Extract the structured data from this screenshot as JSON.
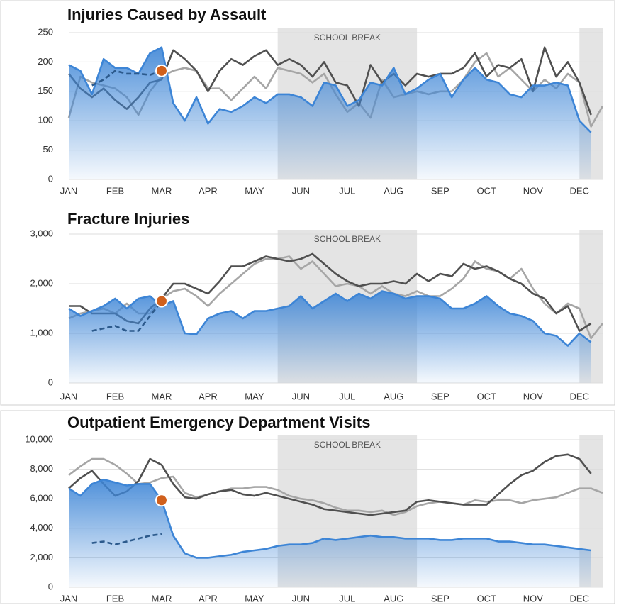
{
  "chart_data": [
    {
      "type": "line",
      "title": "Injuries Caused by Assault",
      "categories": [
        "JAN",
        null,
        null,
        null,
        "FEB",
        null,
        null,
        null,
        "MAR",
        null,
        null,
        null,
        "APR",
        null,
        null,
        null,
        "MAY",
        null,
        null,
        null,
        "JUN",
        null,
        null,
        null,
        "JUL",
        null,
        null,
        null,
        "AUG",
        null,
        null,
        null,
        "SEP",
        null,
        null,
        null,
        "OCT",
        null,
        null,
        null,
        "NOV",
        null,
        null,
        null,
        "DEC",
        null,
        null
      ],
      "ylim": [
        0,
        250
      ],
      "yticks": [
        0,
        50,
        100,
        150,
        200,
        250
      ],
      "grid": true,
      "bands": [
        {
          "label": "SCHOOL BREAK",
          "from": 18,
          "to": 30
        },
        {
          "from": 44,
          "to": 46
        }
      ],
      "series": [
        {
          "color": "#a6a6a6",
          "values": [
            105,
            175,
            165,
            160,
            155,
            140,
            110,
            150,
            175,
            185,
            190,
            185,
            155,
            155,
            135,
            155,
            175,
            155,
            190,
            185,
            180,
            165,
            180,
            145,
            115,
            130,
            105,
            170,
            140,
            145,
            150,
            145,
            150,
            150,
            170,
            200,
            215,
            175,
            190,
            170,
            150,
            170,
            155,
            180,
            165,
            90,
            125
          ]
        },
        {
          "color": "#505050",
          "values": [
            180,
            155,
            140,
            155,
            135,
            120,
            140,
            165,
            170,
            220,
            205,
            185,
            150,
            185,
            205,
            195,
            210,
            220,
            195,
            205,
            195,
            175,
            200,
            165,
            160,
            125,
            195,
            165,
            180,
            160,
            180,
            175,
            180,
            180,
            190,
            215,
            175,
            195,
            190,
            205,
            150,
            225,
            175,
            200,
            165,
            110,
            null
          ]
        },
        {
          "color": "#3d85d6",
          "area": true,
          "values": [
            195,
            185,
            145,
            205,
            190,
            190,
            180,
            215,
            225,
            130,
            100,
            140,
            95,
            120,
            115,
            125,
            140,
            130,
            145,
            145,
            140,
            125,
            165,
            160,
            125,
            135,
            165,
            160,
            190,
            145,
            155,
            170,
            180,
            140,
            170,
            190,
            170,
            165,
            145,
            140,
            160,
            160,
            165,
            160,
            100,
            80,
            null
          ]
        },
        {
          "color": "#2c5a8c",
          "dashed": true,
          "marker": {
            "index": 8,
            "color": "#d0601c"
          },
          "values": [
            null,
            null,
            160,
            170,
            185,
            180,
            180,
            178,
            185,
            null,
            null,
            null,
            null,
            null,
            null,
            null,
            null,
            null,
            null,
            null,
            null,
            null,
            null,
            null,
            null,
            null,
            null,
            null,
            null,
            null,
            null,
            null,
            null,
            null,
            null,
            null,
            null,
            null,
            null,
            null,
            null,
            null,
            null,
            null,
            null,
            null,
            null
          ]
        }
      ]
    },
    {
      "type": "line",
      "title": "Fracture Injuries",
      "categories": [
        "JAN",
        null,
        null,
        null,
        "FEB",
        null,
        null,
        null,
        "MAR",
        null,
        null,
        null,
        "APR",
        null,
        null,
        null,
        "MAY",
        null,
        null,
        null,
        "JUN",
        null,
        null,
        null,
        "JUL",
        null,
        null,
        null,
        "AUG",
        null,
        null,
        null,
        "SEP",
        null,
        null,
        null,
        "OCT",
        null,
        null,
        null,
        "NOV",
        null,
        null,
        null,
        "DEC",
        null,
        null
      ],
      "ylim": [
        0,
        3000
      ],
      "yticks": [
        0,
        {
          "value": 1000,
          "label": "1,000"
        },
        {
          "value": 2000,
          "label": "2,000"
        },
        {
          "value": 3000,
          "label": "3,000"
        }
      ],
      "grid": true,
      "bands": [
        {
          "label": "SCHOOL BREAK",
          "from": 18,
          "to": 30
        },
        {
          "from": 44,
          "to": 46
        }
      ],
      "series": [
        {
          "color": "#a6a6a6",
          "values": [
            1300,
            1400,
            1450,
            1500,
            1400,
            1600,
            1400,
            1400,
            1700,
            1850,
            1900,
            1750,
            1550,
            1800,
            2000,
            2200,
            2400,
            2500,
            2500,
            2550,
            2300,
            2450,
            2200,
            1950,
            2000,
            1950,
            1800,
            1950,
            1800,
            1750,
            1850,
            1750,
            1750,
            1900,
            2100,
            2450,
            2300,
            2250,
            2100,
            2300,
            1900,
            1600,
            1400,
            1600,
            1500,
            900,
            1200
          ]
        },
        {
          "color": "#505050",
          "values": [
            1550,
            1550,
            1400,
            1400,
            1400,
            1250,
            1200,
            1500,
            1700,
            2000,
            2000,
            1900,
            1800,
            2050,
            2350,
            2350,
            2450,
            2550,
            2500,
            2450,
            2500,
            2600,
            2400,
            2200,
            2050,
            1950,
            2000,
            2000,
            2050,
            2000,
            2200,
            2050,
            2200,
            2150,
            2400,
            2300,
            2350,
            2250,
            2100,
            2000,
            1800,
            1700,
            1400,
            1550,
            1050,
            1200,
            null
          ]
        },
        {
          "color": "#3d85d6",
          "area": true,
          "values": [
            1500,
            1350,
            1450,
            1550,
            1700,
            1500,
            1700,
            1750,
            1550,
            1650,
            1000,
            980,
            1300,
            1400,
            1450,
            1300,
            1450,
            1450,
            1500,
            1550,
            1750,
            1500,
            1650,
            1800,
            1650,
            1800,
            1700,
            1850,
            1800,
            1700,
            1750,
            1750,
            1700,
            1500,
            1500,
            1600,
            1750,
            1550,
            1400,
            1350,
            1250,
            1000,
            950,
            750,
            1000,
            820,
            null
          ]
        },
        {
          "color": "#2c5a8c",
          "dashed": true,
          "marker": {
            "index": 8,
            "color": "#d0601c"
          },
          "values": [
            null,
            null,
            1050,
            1100,
            1150,
            1050,
            1050,
            1350,
            1650,
            null,
            null,
            null,
            null,
            null,
            null,
            null,
            null,
            null,
            null,
            null,
            null,
            null,
            null,
            null,
            null,
            null,
            null,
            null,
            null,
            null,
            null,
            null,
            null,
            null,
            null,
            null,
            null,
            null,
            null,
            null,
            null,
            null,
            null,
            null,
            null,
            null,
            null
          ]
        }
      ]
    },
    {
      "type": "line",
      "title": "Outpatient Emergency Department Visits",
      "categories": [
        "JAN",
        null,
        null,
        null,
        "FEB",
        null,
        null,
        null,
        "MAR",
        null,
        null,
        null,
        "APR",
        null,
        null,
        null,
        "MAY",
        null,
        null,
        null,
        "JUN",
        null,
        null,
        null,
        "JUL",
        null,
        null,
        null,
        "AUG",
        null,
        null,
        null,
        "SEP",
        null,
        null,
        null,
        "OCT",
        null,
        null,
        null,
        "NOV",
        null,
        null,
        null,
        "DEC",
        null,
        null
      ],
      "ylim": [
        0,
        10000
      ],
      "yticks": [
        0,
        {
          "value": 2000,
          "label": "2,000"
        },
        {
          "value": 4000,
          "label": "4,000"
        },
        {
          "value": 6000,
          "label": "6,000"
        },
        {
          "value": 8000,
          "label": "8,000"
        },
        {
          "value": 10000,
          "label": "10,000"
        }
      ],
      "grid": true,
      "bands": [
        {
          "label": "SCHOOL BREAK",
          "from": 18,
          "to": 30
        },
        {
          "from": 44,
          "to": 46
        }
      ],
      "series": [
        {
          "color": "#a6a6a6",
          "values": [
            7600,
            8200,
            8700,
            8700,
            8300,
            7700,
            7000,
            7100,
            7400,
            7500,
            6400,
            6100,
            6300,
            6500,
            6700,
            6700,
            6800,
            6800,
            6600,
            6200,
            6000,
            5900,
            5700,
            5400,
            5200,
            5200,
            5100,
            5200,
            4900,
            5100,
            5500,
            5700,
            5800,
            5700,
            5600,
            5900,
            5800,
            5900,
            5900,
            5700,
            5900,
            6000,
            6100,
            6400,
            6700,
            6700,
            6400
          ]
        },
        {
          "color": "#505050",
          "values": [
            6700,
            7400,
            7900,
            7000,
            6200,
            6500,
            7200,
            8700,
            8300,
            7000,
            6100,
            6000,
            6300,
            6500,
            6600,
            6300,
            6200,
            6400,
            6200,
            6000,
            5800,
            5600,
            5300,
            5200,
            5100,
            5000,
            4900,
            5000,
            5100,
            5200,
            5800,
            5900,
            5800,
            5700,
            5600,
            5600,
            5600,
            6300,
            7000,
            7600,
            7900,
            8500,
            8900,
            9000,
            8700,
            7700,
            null
          ]
        },
        {
          "color": "#3d85d6",
          "area": true,
          "marker": {
            "index": 8,
            "color": "#d0601c"
          },
          "values": [
            6700,
            6200,
            7000,
            7300,
            7100,
            6900,
            7000,
            7000,
            5900,
            3500,
            2300,
            2000,
            2000,
            2100,
            2200,
            2400,
            2500,
            2600,
            2800,
            2900,
            2900,
            3000,
            3300,
            3200,
            3300,
            3400,
            3500,
            3400,
            3400,
            3300,
            3300,
            3300,
            3200,
            3200,
            3300,
            3300,
            3300,
            3100,
            3100,
            3000,
            2900,
            2900,
            2800,
            2700,
            2600,
            2500,
            null
          ]
        },
        {
          "color": "#2c5a8c",
          "dashed": true,
          "values": [
            null,
            null,
            3000,
            3100,
            2900,
            3100,
            3300,
            3500,
            3600,
            null,
            null,
            null,
            null,
            null,
            null,
            null,
            null,
            null,
            null,
            null,
            null,
            null,
            null,
            null,
            null,
            null,
            null,
            null,
            null,
            null,
            null,
            null,
            null,
            null,
            null,
            null,
            null,
            null,
            null,
            null,
            null,
            null,
            null,
            null,
            null,
            null,
            null
          ]
        }
      ]
    }
  ]
}
